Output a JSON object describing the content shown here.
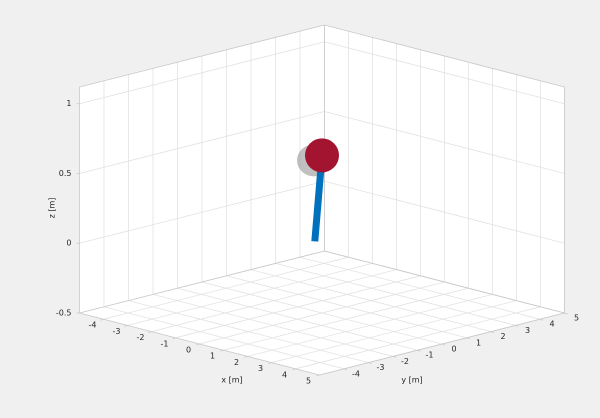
{
  "chart_data": {
    "type": "pendulum3d",
    "xlabel": "x [m]",
    "ylabel": "y [m]",
    "zlabel": "z [m]",
    "xlim": [
      -5,
      5
    ],
    "ylim": [
      -5,
      5
    ],
    "zlim": [
      -0.5,
      1.12
    ],
    "xticks": [
      -4,
      -3,
      -2,
      -1,
      0,
      1,
      2,
      3,
      4,
      5
    ],
    "yticks": [
      -4,
      -3,
      -2,
      -1,
      0,
      1,
      2,
      3,
      4,
      5
    ],
    "zticks": [
      -0.5,
      0,
      0.5,
      1
    ],
    "grid": true,
    "rod": {
      "x": [
        -0.3,
        0
      ],
      "y": [
        0,
        0
      ],
      "z": [
        0,
        0.63
      ],
      "color": "#0072bd"
    },
    "bob": {
      "x": 0,
      "y": 0,
      "z": 0.63,
      "color": "#a2142f"
    }
  }
}
